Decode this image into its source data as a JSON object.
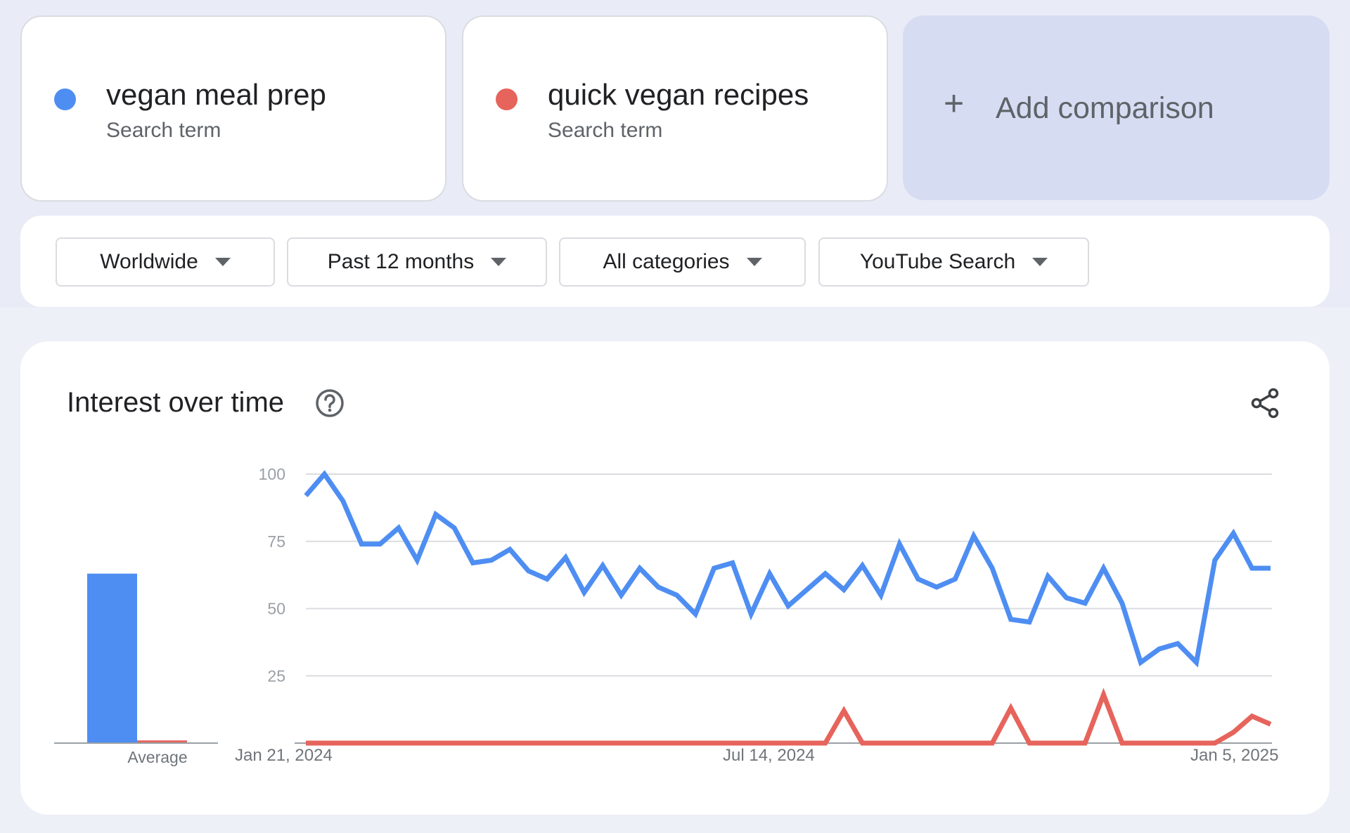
{
  "terms": [
    {
      "name": "vegan meal prep",
      "type": "Search term",
      "color": "#4e8ef2"
    },
    {
      "name": "quick vegan recipes",
      "type": "Search term",
      "color": "#e6645c"
    }
  ],
  "add_comparison": {
    "label": "Add comparison",
    "icon": "plus-icon"
  },
  "filters": {
    "region": "Worldwide",
    "time_range": "Past 12 months",
    "category": "All categories",
    "source": "YouTube Search"
  },
  "chart": {
    "title": "Interest over time",
    "average_label": "Average",
    "x_ticks": [
      "Jan 21, 2024",
      "Jul 14, 2024",
      "Jan 5, 2025"
    ],
    "y_ticks": [
      "100",
      "75",
      "50",
      "25"
    ]
  },
  "chart_data": {
    "type": "line",
    "ylim": [
      0,
      100
    ],
    "grid": true,
    "legend": "none",
    "series": [
      {
        "color": "#4e8ef2",
        "average": 63,
        "values": [
          92,
          100,
          90,
          74,
          74,
          80,
          68,
          85,
          80,
          67,
          68,
          72,
          64,
          61,
          69,
          56,
          66,
          55,
          65,
          58,
          55,
          48,
          65,
          67,
          48,
          63,
          51,
          57,
          63,
          57,
          66,
          55,
          74,
          61,
          58,
          61,
          77,
          65,
          46,
          45,
          62,
          54,
          52,
          65,
          52,
          30,
          35,
          37,
          30,
          68,
          78,
          65,
          65
        ]
      },
      {
        "color": "#e6645c",
        "average": 1,
        "values": [
          0,
          0,
          0,
          0,
          0,
          0,
          0,
          0,
          0,
          0,
          0,
          0,
          0,
          0,
          0,
          0,
          0,
          0,
          0,
          0,
          0,
          0,
          0,
          0,
          0,
          0,
          0,
          0,
          0,
          12,
          0,
          0,
          0,
          0,
          0,
          0,
          0,
          0,
          13,
          0,
          0,
          0,
          0,
          18,
          0,
          0,
          0,
          0,
          0,
          0,
          4,
          10,
          7
        ]
      }
    ]
  }
}
